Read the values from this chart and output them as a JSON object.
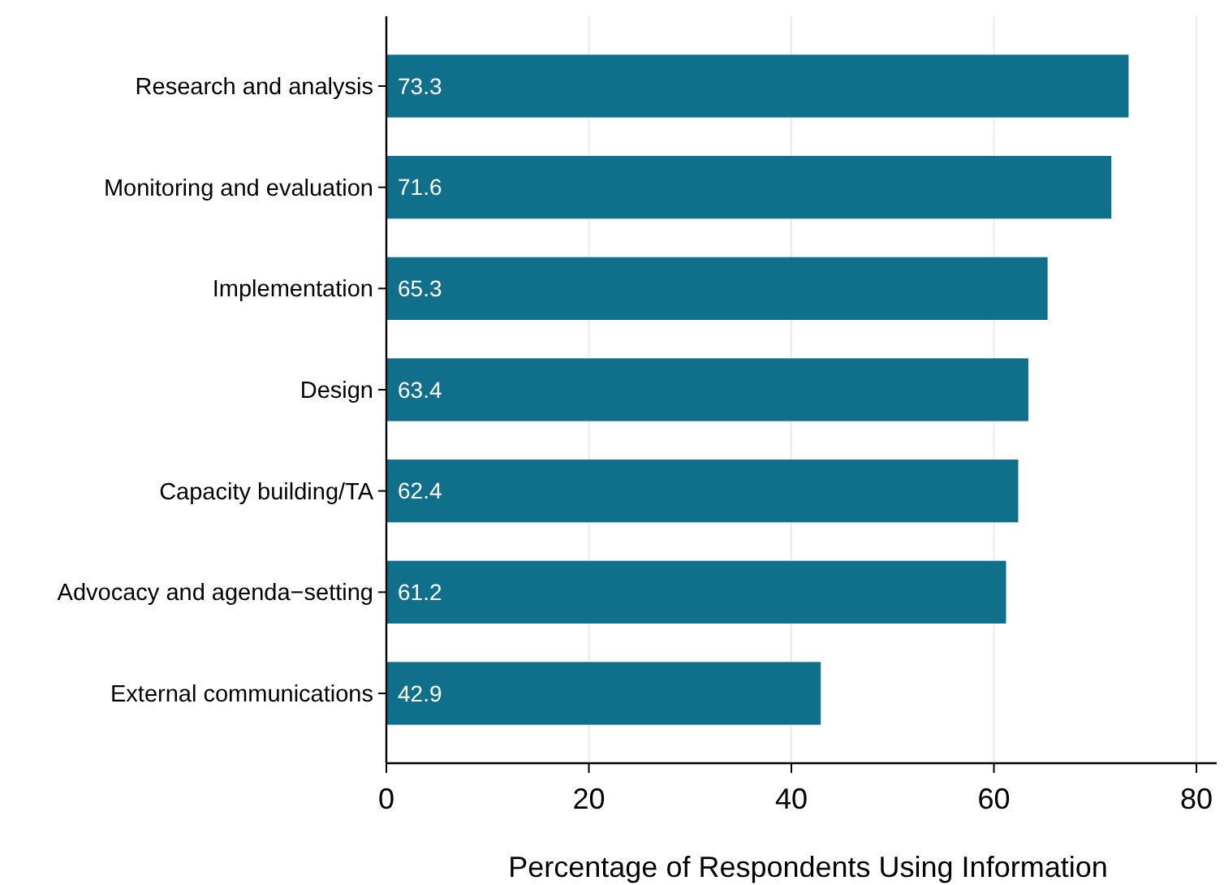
{
  "chart_data": {
    "type": "bar",
    "orientation": "horizontal",
    "xlabel": "Percentage of Respondents Using Information",
    "categories": [
      "Research and analysis",
      "Monitoring and evaluation",
      "Implementation",
      "Design",
      "Capacity building/TA",
      "Advocacy and agenda−setting",
      "External communications"
    ],
    "values": [
      73.3,
      71.6,
      65.3,
      63.4,
      62.4,
      61.2,
      42.9
    ],
    "color": "#106f8a",
    "xlim": [
      0,
      82
    ],
    "xticks": [
      0,
      20,
      40,
      60,
      80
    ],
    "grid": "x",
    "data_labels": true
  }
}
